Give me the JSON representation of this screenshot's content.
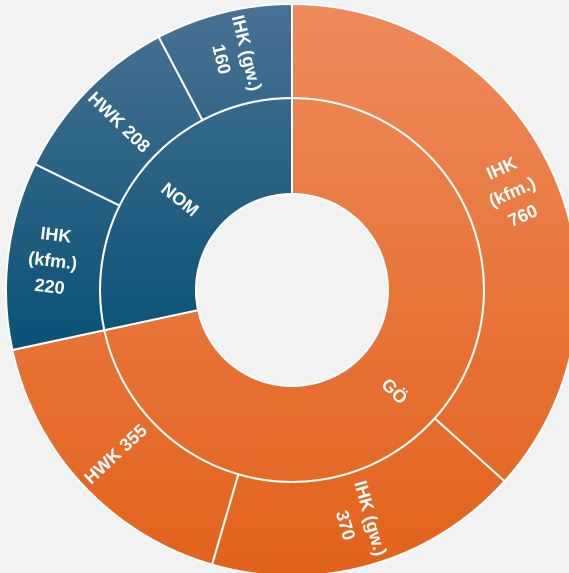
{
  "chart_data": {
    "type": "sunburst",
    "title": "",
    "colors": {
      "orange_light": "#ee8a5c",
      "orange_dark": "#e2621b",
      "blue_light": "#4a7294",
      "blue_dark": "#0c5477"
    },
    "inner": [
      {
        "name": "GÖ",
        "value": 1485,
        "color": "orange"
      },
      {
        "name": "NOM",
        "value": 588,
        "color": "blue"
      }
    ],
    "outer": [
      {
        "parent": "GÖ",
        "label_lines": [
          "IHK",
          "(kfm.)",
          "760"
        ],
        "value": 760
      },
      {
        "parent": "GÖ",
        "label_lines": [
          "IHK (gw.)",
          "370"
        ],
        "value": 370
      },
      {
        "parent": "GÖ",
        "label_lines": [
          "HWK 355"
        ],
        "value": 355
      },
      {
        "parent": "NOM",
        "label_lines": [
          "IHK",
          "(kfm.)",
          "220"
        ],
        "value": 220
      },
      {
        "parent": "NOM",
        "label_lines": [
          "HWK 208"
        ],
        "value": 208
      },
      {
        "parent": "NOM",
        "label_lines": [
          "IHK (gw.)",
          "160"
        ],
        "value": 160
      }
    ]
  }
}
